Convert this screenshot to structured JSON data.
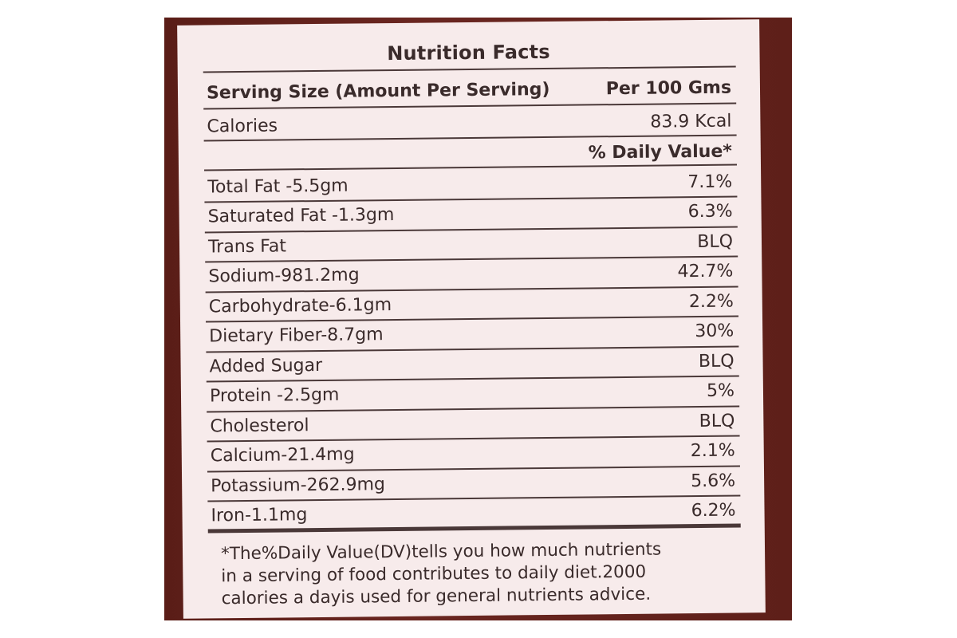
{
  "label": {
    "title": "Nutrition Facts",
    "serving": {
      "left": "Serving Size (Amount Per Serving)",
      "right": "Per 100 Gms"
    },
    "calories": {
      "left": "Calories",
      "right": "83.9 Kcal"
    },
    "dv_header": "% Daily Value*",
    "nutrients": [
      {
        "name": "Total Fat -5.5gm",
        "dv": "7.1%"
      },
      {
        "name": "Saturated Fat -1.3gm",
        "dv": "6.3%"
      },
      {
        "name": "Trans Fat",
        "dv": "BLQ"
      },
      {
        "name": "Sodium-981.2mg",
        "dv": "42.7%"
      },
      {
        "name": "Carbohydrate-6.1gm",
        "dv": "2.2%"
      },
      {
        "name": "Dietary Fiber-8.7gm",
        "dv": "30%"
      },
      {
        "name": "Added Sugar",
        "dv": "BLQ"
      },
      {
        "name": "Protein -2.5gm",
        "dv": "5%"
      },
      {
        "name": "Cholesterol",
        "dv": "BLQ"
      },
      {
        "name": "Calcium-21.4mg",
        "dv": "2.1%"
      },
      {
        "name": "Potassium-262.9mg",
        "dv": "5.6%"
      },
      {
        "name": "Iron-1.1mg",
        "dv": "6.2%"
      }
    ],
    "footnote": "*The%Daily Value(DV)tells you how much nutrients\nin a  serving of food contributes to daily diet.2000\ncalories a dayis used for general nutrients advice."
  }
}
